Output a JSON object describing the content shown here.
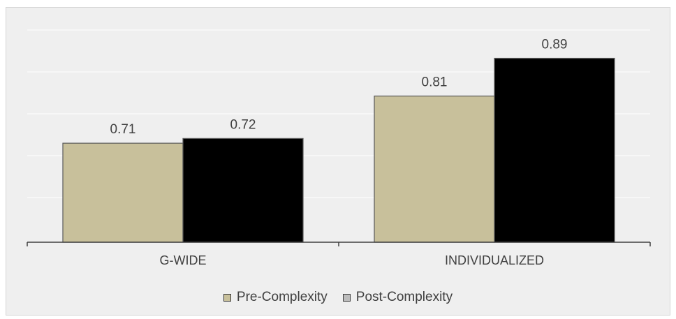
{
  "chart_data": {
    "type": "bar",
    "title": "",
    "xlabel": "",
    "ylabel": "",
    "categories": [
      "G-WIDE",
      "INDIVIDUALIZED"
    ],
    "series": [
      {
        "name": "Pre-Complexity",
        "values": [
          0.71,
          0.81
        ],
        "color": "#c8c09b",
        "legend_color": "#c8c09b"
      },
      {
        "name": "Post-Complexity",
        "values": [
          0.72,
          0.89
        ],
        "color": "#000000",
        "legend_color": "#bcbcbc"
      }
    ],
    "value_labels": [
      [
        "0.71",
        "0.81"
      ],
      [
        "0.72",
        "0.89"
      ]
    ],
    "ylim": [
      0.5,
      0.95
    ],
    "grid": true,
    "legend_position": "bottom",
    "colors": {
      "background": "#efefef",
      "gridline": "#ffffff",
      "axis": "#404040",
      "bar_border": "#595959",
      "text": "#404040"
    }
  }
}
